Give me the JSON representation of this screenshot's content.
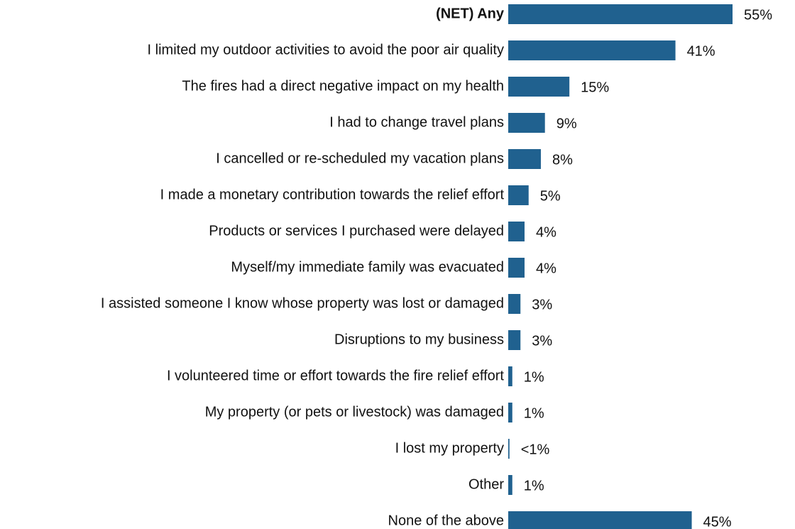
{
  "chart_data": {
    "type": "bar",
    "orientation": "horizontal",
    "color": "#20618f",
    "categories": [
      "(NET) Any",
      "I limited my outdoor activities to avoid the poor air quality",
      "The fires had a direct negative impact on my health",
      "I had to change travel plans",
      "I cancelled or re-scheduled my vacation plans",
      "I made a monetary contribution towards the relief effort",
      "Products or services I purchased were delayed",
      "Myself/my immediate family was evacuated",
      "I assisted someone I know whose property was lost or damaged",
      "Disruptions to my business",
      "I volunteered time or effort towards the fire relief effort",
      "My property (or pets or livestock) was damaged",
      "I lost my property",
      "Other",
      "None of the above"
    ],
    "values": [
      55,
      41,
      15,
      9,
      8,
      5,
      4,
      4,
      3,
      3,
      1,
      1,
      0.3,
      1,
      45
    ],
    "value_labels": [
      "55%",
      "41%",
      "15%",
      "9%",
      "8%",
      "5%",
      "4%",
      "4%",
      "3%",
      "3%",
      "1%",
      "1%",
      "<1%",
      "1%",
      "45%"
    ]
  }
}
